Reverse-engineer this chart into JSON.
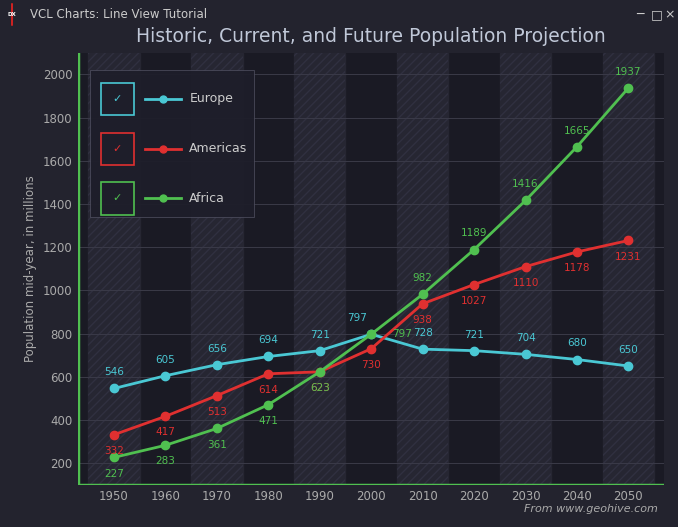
{
  "title": "Historic, Current, and Future Population Projection",
  "ylabel": "Population mid-year, in millions",
  "attribution": "From www.geohive.com",
  "years": [
    1950,
    1960,
    1970,
    1980,
    1990,
    2000,
    2010,
    2020,
    2030,
    2040,
    2050
  ],
  "europe": [
    546,
    605,
    656,
    694,
    721,
    797,
    728,
    721,
    704,
    680,
    650
  ],
  "americas": [
    332,
    417,
    513,
    614,
    623,
    730,
    938,
    1027,
    1110,
    1178,
    1231
  ],
  "africa": [
    227,
    283,
    361,
    471,
    623,
    797,
    982,
    1189,
    1416,
    1665,
    1937
  ],
  "europe_color": "#4ac8d4",
  "americas_color": "#e03030",
  "africa_color": "#50c050",
  "bg_outer": "#23232e",
  "titlebar_bg": "#2c2c38",
  "chart_bg_dark": "#1a1a24",
  "chart_bg_stripe": "#252530",
  "grid_color": "#3a3a48",
  "text_color": "#aaaaaa",
  "title_color": "#c0c8d8",
  "green_axis": "#50c050",
  "ylim": [
    100,
    2100
  ],
  "yticks": [
    200,
    400,
    600,
    800,
    1000,
    1200,
    1400,
    1600,
    1800,
    2000
  ],
  "window_title": "VCL Charts: Line View Tutorial",
  "legend_items": [
    {
      "color": "#4ac8d4",
      "check_color": "#4ac8d4",
      "label": "Europe"
    },
    {
      "color": "#e03030",
      "check_color": "#e03030",
      "label": "Americas"
    },
    {
      "color": "#50c050",
      "check_color": "#50c050",
      "label": "Africa"
    }
  ]
}
